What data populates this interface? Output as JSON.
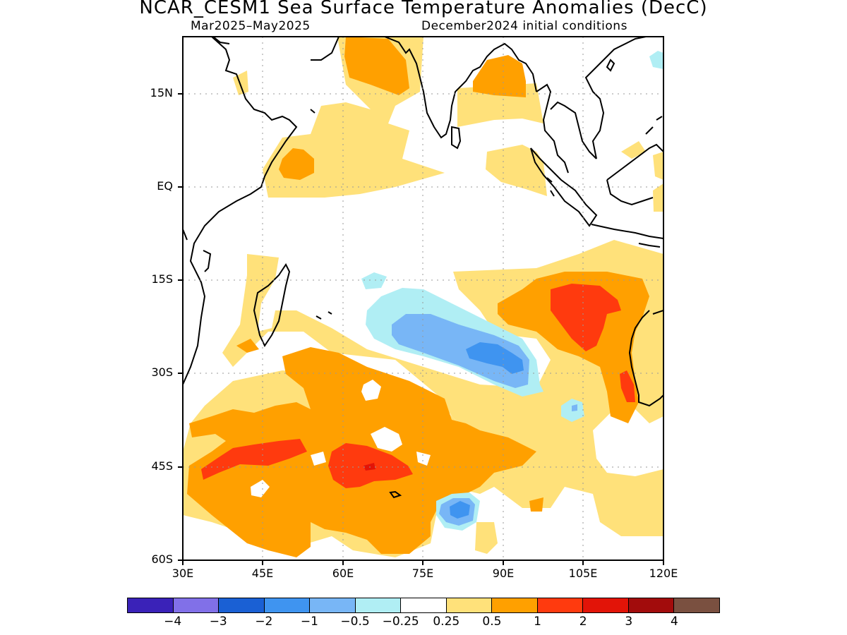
{
  "title": "NCAR_CESM1 Sea Surface Temperature Anomalies (DecC)",
  "subtitle_left": "Mar2025–May2025",
  "subtitle_right": "December2024 initial conditions",
  "y_ticks": [
    "15N",
    "EQ",
    "15S",
    "30S",
    "45S",
    "60S"
  ],
  "x_ticks": [
    "30E",
    "45E",
    "60E",
    "75E",
    "90E",
    "105E",
    "120E"
  ],
  "colorbar": {
    "colors": [
      "#3a22b8",
      "#8170e8",
      "#1a60d4",
      "#3f94f0",
      "#78b6f6",
      "#b0eef4",
      "#ffffff",
      "#ffe17a",
      "#ffa000",
      "#ff3a0e",
      "#e21408",
      "#a20c0c",
      "#7a5040"
    ],
    "labels": [
      "−4",
      "−3",
      "−2",
      "−1",
      "−0.5",
      "−0.25",
      "0.25",
      "0.5",
      "1",
      "2",
      "3",
      "4"
    ]
  }
}
